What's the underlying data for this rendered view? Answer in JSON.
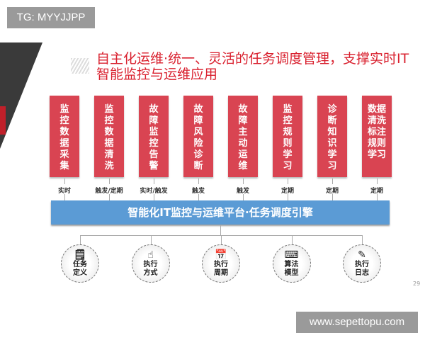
{
  "watermark_top": "TG: MYYJJPP",
  "watermark_bottom": "www.sepettopu.com",
  "title": "自主化运维·统一、灵活的任务调度管理，支撑实时IT智能监控与运维应用",
  "modules": [
    {
      "label": "监控数据采集",
      "trigger": "实时"
    },
    {
      "label": "监控数据清洗",
      "trigger": "触发/定期"
    },
    {
      "label": "故障监控告警",
      "trigger": "实时/触发"
    },
    {
      "label": "故障风险诊断",
      "trigger": "触发"
    },
    {
      "label": "故障主动运维",
      "trigger": "触发"
    },
    {
      "label": "监控规则学习",
      "trigger": "定期"
    },
    {
      "label": "诊断知识学习",
      "trigger": "定期"
    },
    {
      "label": "数据清洗标注规则学习",
      "trigger": "定期"
    }
  ],
  "platform": "智能化IT监控与运维平台·任务调度引擎",
  "features": [
    {
      "label": "任务定义",
      "icon": "document-check-icon"
    },
    {
      "label": "执行方式",
      "icon": "hand-pointer-icon"
    },
    {
      "label": "执行周期",
      "icon": "calendar-clock-icon"
    },
    {
      "label": "算法模型",
      "icon": "code-window-icon"
    },
    {
      "label": "执行日志",
      "icon": "notebook-pen-icon"
    }
  ],
  "page_number": "29",
  "colors": {
    "accent_red": "#d94452",
    "title_red": "#d9202e",
    "platform_blue": "#5b9bd5"
  }
}
